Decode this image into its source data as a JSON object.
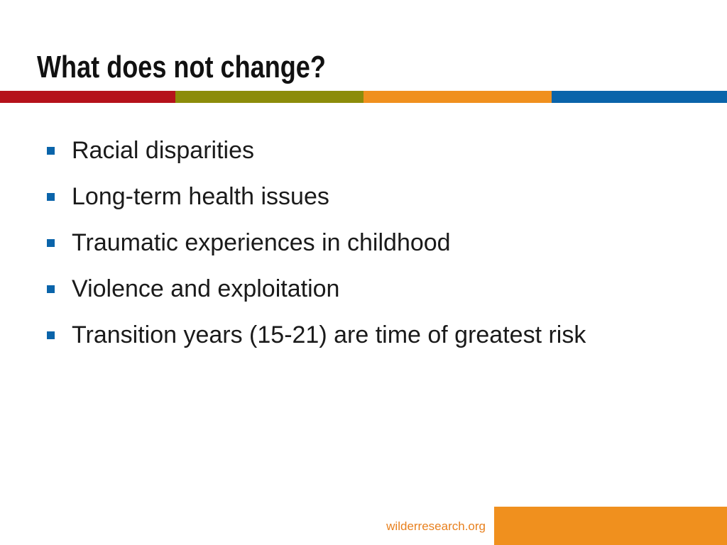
{
  "slide": {
    "title": "What does not change?",
    "bullets": [
      "Racial disparities",
      "Long-term health issues",
      "Traumatic experiences in childhood",
      "Violence and exploitation",
      "Transition years (15-21) are time of greatest risk"
    ]
  },
  "footer": {
    "url": "wilderresearch.org"
  },
  "colors": {
    "bar_red": "#b5121b",
    "bar_olive": "#8c8c0a",
    "bar_orange": "#f0901e",
    "bar_blue": "#0a64aa",
    "bullet": "#0a64aa",
    "footer_text": "#e8801e",
    "footer_block": "#f0901e",
    "title": "#111111"
  }
}
